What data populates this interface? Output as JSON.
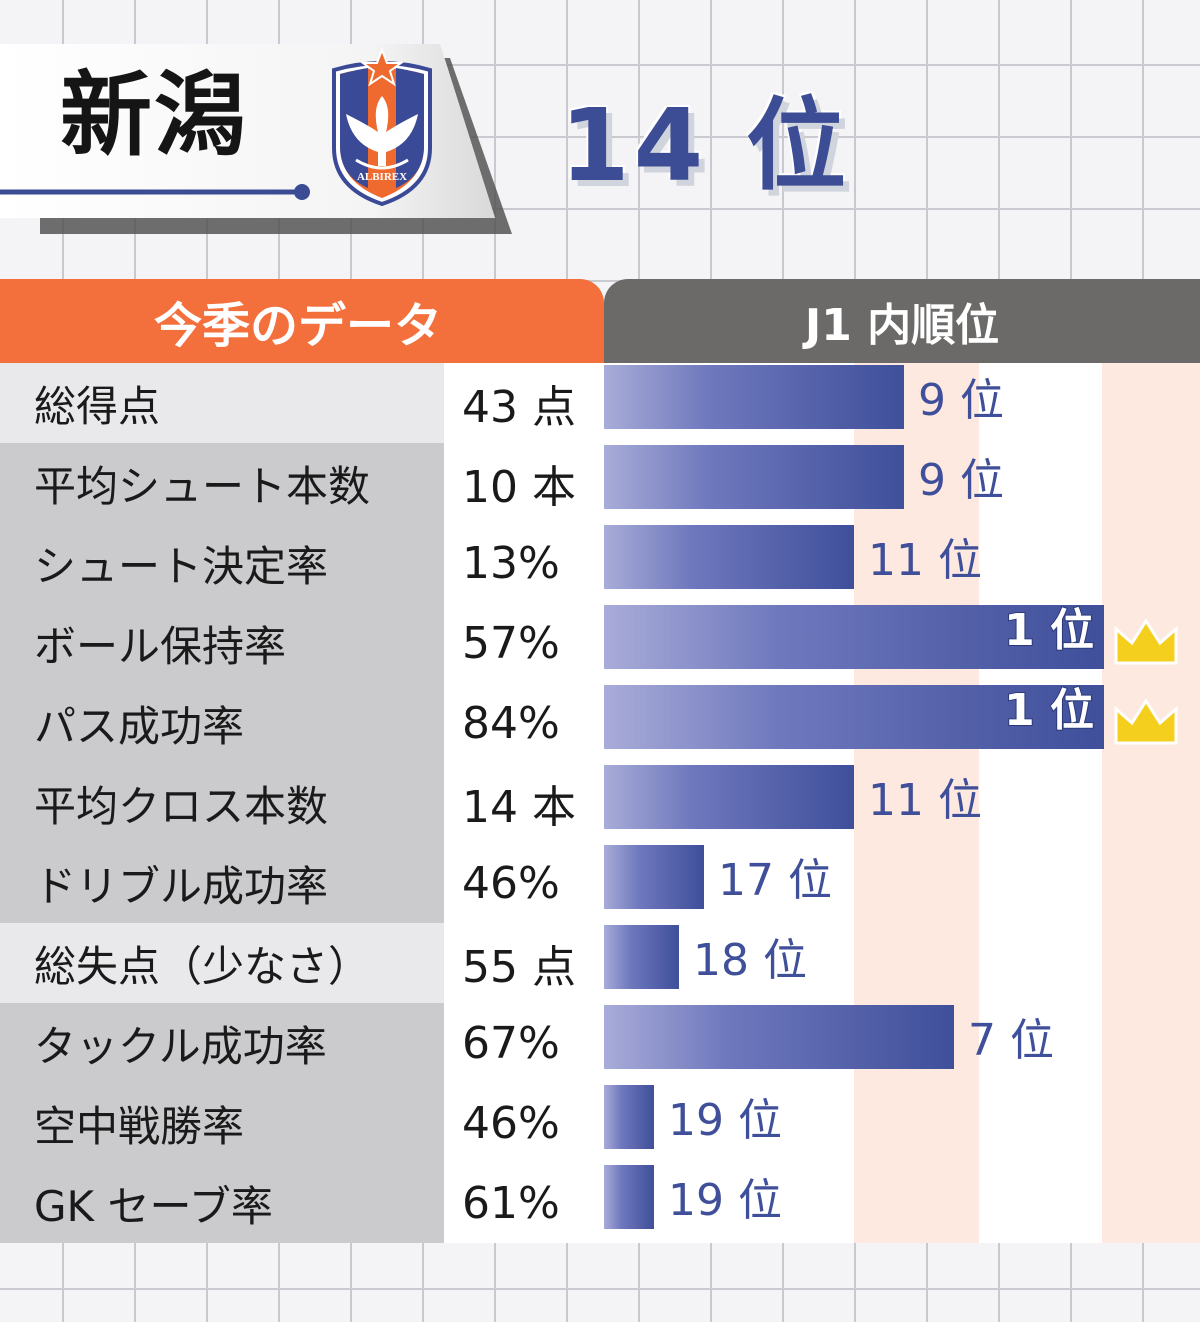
{
  "team": {
    "name": "新潟",
    "rank_label": "14 位",
    "logo_text": "ALBIREX"
  },
  "headers": {
    "left": "今季のデータ",
    "right": "J1 内順位"
  },
  "colors": {
    "orange": "#f36f3c",
    "gray_header": "#6c6a68",
    "bar_dark": "#3f4f9a",
    "bar_light": "#9da3d2",
    "rank_text": "#3f4f9a",
    "crown": "#f5cf1e",
    "stripe": "#fde9df"
  },
  "chart_data": {
    "type": "bar",
    "title": "J1 内順位",
    "categories": [
      "総得点",
      "平均シュート本数",
      "シュート決定率",
      "ボール保持率",
      "パス成功率",
      "平均クロス本数",
      "ドリブル成功率",
      "総失点（少なさ）",
      "タックル成功率",
      "空中戦勝率",
      "GK セーブ率"
    ],
    "values_text": [
      "43 点",
      "10 本",
      "13%",
      "57%",
      "84%",
      "14 本",
      "46%",
      "55 点",
      "67%",
      "46%",
      "61%"
    ],
    "ranks": [
      9,
      9,
      11,
      1,
      1,
      11,
      17,
      18,
      7,
      19,
      19
    ],
    "rank_labels": [
      "9 位",
      "9 位",
      "11 位",
      "1 位",
      "1 位",
      "11 位",
      "17 位",
      "18 位",
      "7 位",
      "19 位",
      "19 位"
    ],
    "highlight_rows": [
      0,
      7
    ],
    "crown_rows": [
      3,
      4
    ],
    "num_teams": 20
  }
}
